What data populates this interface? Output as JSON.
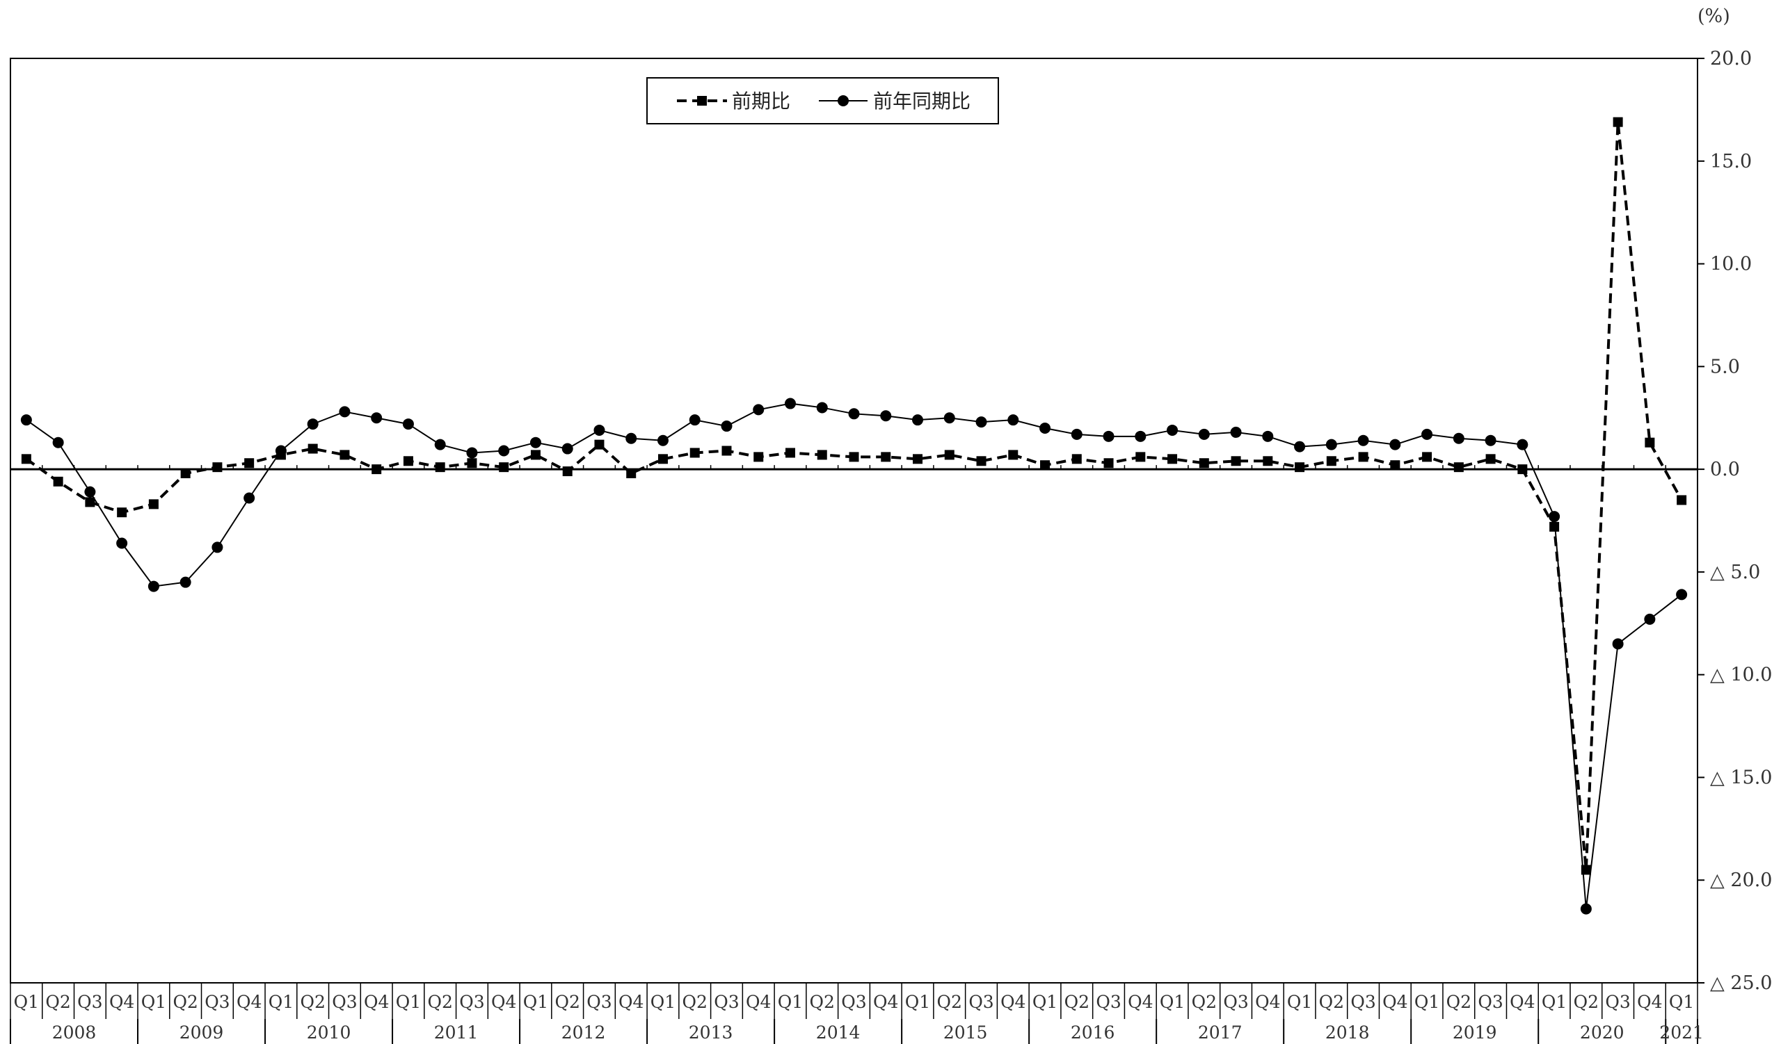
{
  "chart_data": {
    "type": "line",
    "unit_label": "(%)",
    "y_tick_labels": [
      "20.0",
      "15.0",
      "10.0",
      "5.0",
      "0.0",
      "△ 5.0",
      "△ 10.0",
      "△ 15.0",
      "△ 20.0",
      "△ 25.0"
    ],
    "y_tick_values": [
      20,
      15,
      10,
      5,
      0,
      -5,
      -10,
      -15,
      -20,
      -25
    ],
    "ylim": [
      -25,
      20
    ],
    "quarter_labels": [
      "Q1",
      "Q2",
      "Q3",
      "Q4",
      "Q1",
      "Q2",
      "Q3",
      "Q4",
      "Q1",
      "Q2",
      "Q3",
      "Q4",
      "Q1",
      "Q2",
      "Q3",
      "Q4",
      "Q1",
      "Q2",
      "Q3",
      "Q4",
      "Q1",
      "Q2",
      "Q3",
      "Q4",
      "Q1",
      "Q2",
      "Q3",
      "Q4",
      "Q1",
      "Q2",
      "Q3",
      "Q4",
      "Q1",
      "Q2",
      "Q3",
      "Q4",
      "Q1",
      "Q2",
      "Q3",
      "Q4",
      "Q1",
      "Q2",
      "Q3",
      "Q4",
      "Q1",
      "Q2",
      "Q3",
      "Q4",
      "Q1",
      "Q2",
      "Q3",
      "Q4",
      "Q1"
    ],
    "years": [
      "2008",
      "2009",
      "2010",
      "2011",
      "2012",
      "2013",
      "2014",
      "2015",
      "2016",
      "2017",
      "2018",
      "2019",
      "2020",
      "2021"
    ],
    "series": [
      {
        "name": "前期比",
        "style": "dashed",
        "marker": "square",
        "color": "#000000",
        "values": [
          0.5,
          -0.6,
          -1.6,
          -2.1,
          -1.7,
          -0.2,
          0.1,
          0.3,
          0.7,
          1.0,
          0.7,
          0.0,
          0.4,
          0.1,
          0.3,
          0.1,
          0.7,
          -0.1,
          1.2,
          -0.2,
          0.5,
          0.8,
          0.9,
          0.6,
          0.8,
          0.7,
          0.6,
          0.6,
          0.5,
          0.7,
          0.4,
          0.7,
          0.2,
          0.5,
          0.3,
          0.6,
          0.5,
          0.3,
          0.4,
          0.4,
          0.1,
          0.4,
          0.6,
          0.2,
          0.6,
          0.1,
          0.5,
          0.0,
          -2.8,
          -19.5,
          16.9,
          1.3,
          -1.5
        ]
      },
      {
        "name": "前年同期比",
        "style": "solid",
        "marker": "circle",
        "color": "#000000",
        "values": [
          2.4,
          1.3,
          -1.1,
          -3.6,
          -5.7,
          -5.5,
          -3.8,
          -1.4,
          0.9,
          2.2,
          2.8,
          2.5,
          2.2,
          1.2,
          0.8,
          0.9,
          1.3,
          1.0,
          1.9,
          1.5,
          1.4,
          2.4,
          2.1,
          2.9,
          3.2,
          3.0,
          2.7,
          2.6,
          2.4,
          2.5,
          2.3,
          2.4,
          2.0,
          1.7,
          1.6,
          1.6,
          1.9,
          1.7,
          1.8,
          1.6,
          1.1,
          1.2,
          1.4,
          1.2,
          1.7,
          1.5,
          1.4,
          1.2,
          -2.3,
          -21.4,
          -8.5,
          -7.3,
          -6.1
        ]
      }
    ],
    "legend": {
      "placement": "top-center"
    },
    "grid": false
  }
}
